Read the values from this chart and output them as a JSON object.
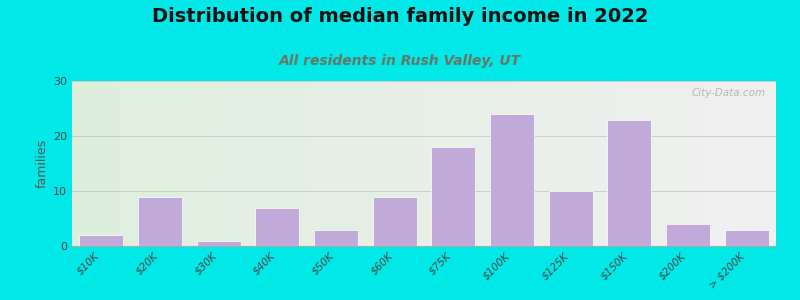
{
  "title": "Distribution of median family income in 2022",
  "subtitle": "All residents in Rush Valley, UT",
  "ylabel": "families",
  "categories": [
    "$10K",
    "$20K",
    "$30K",
    "$40K",
    "$50K",
    "$60K",
    "$75K",
    "$100K",
    "$125K",
    "$150K",
    "$200K",
    "> $200K"
  ],
  "values": [
    2,
    9,
    1,
    7,
    3,
    9,
    18,
    24,
    10,
    23,
    4,
    3
  ],
  "bar_color": "#c0aad8",
  "bar_edge_color": "#ffffff",
  "ylim": [
    0,
    30
  ],
  "yticks": [
    0,
    10,
    20,
    30
  ],
  "background_color": "#00e8e8",
  "plot_bg_left": "#deeedd",
  "plot_bg_right": "#f0f0f0",
  "title_fontsize": 14,
  "subtitle_fontsize": 10,
  "subtitle_color": "#667766",
  "watermark": "City-Data.com",
  "grid_color": "#cccccc",
  "bar_width": 0.75
}
